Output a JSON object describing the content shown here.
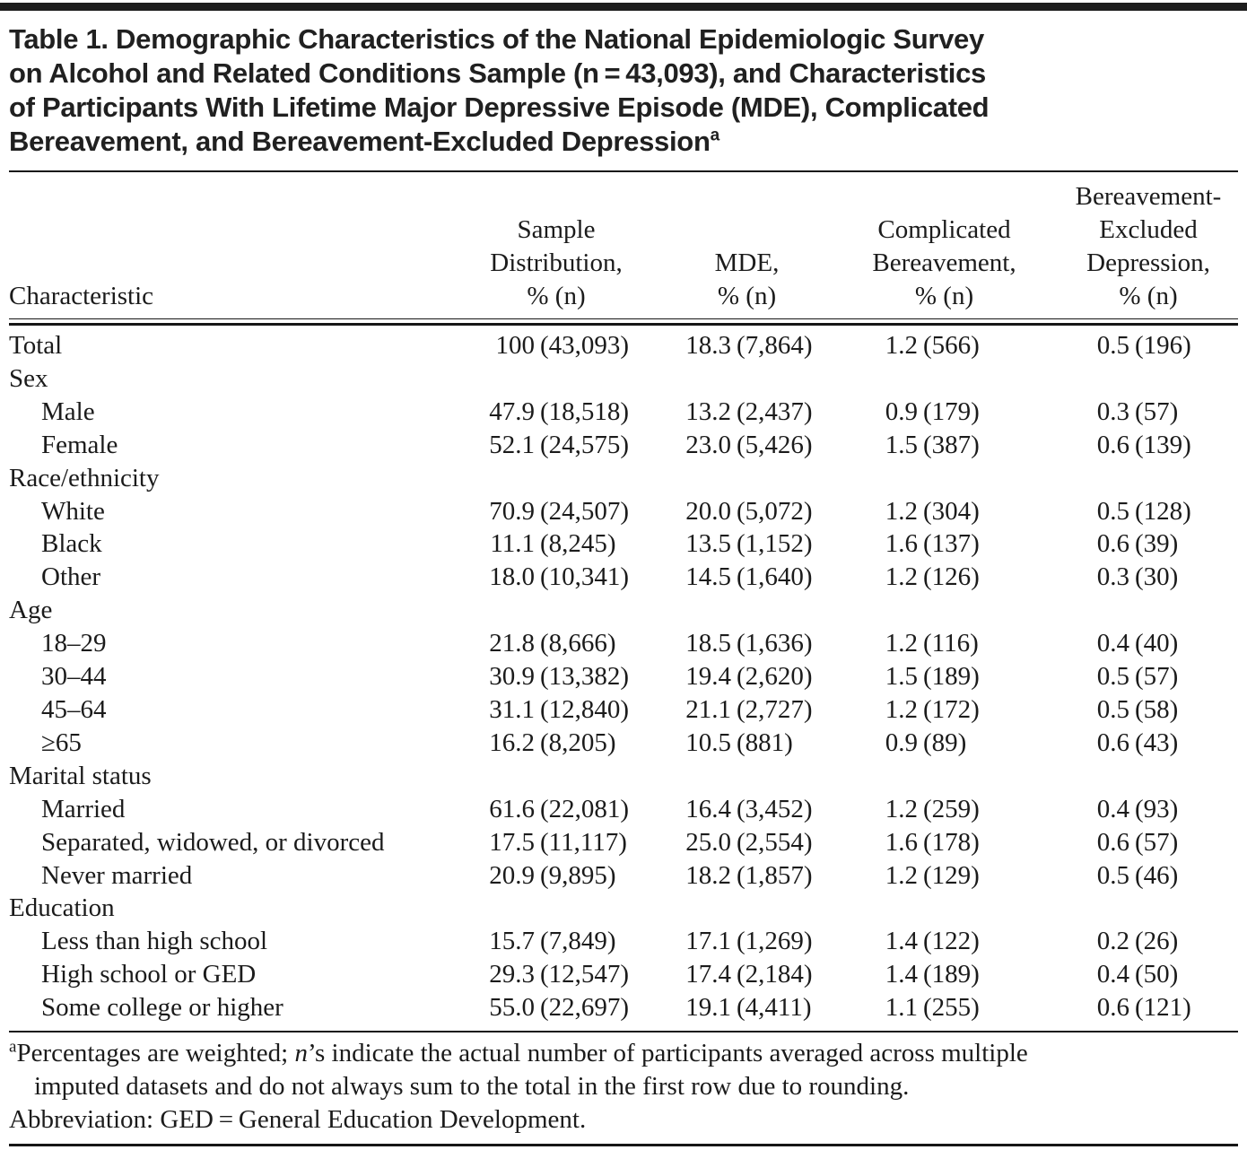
{
  "title": {
    "lines": [
      "Table 1. Demographic Characteristics of the National Epidemiologic Survey",
      "on Alcohol and Related Conditions Sample (n = 43,093), and Characteristics",
      "of Participants With Lifetime Major Depressive Episode (MDE), Complicated",
      "Bereavement, and Bereavement-Excluded Depression"
    ],
    "superscript": "a"
  },
  "table": {
    "header": {
      "characteristic": "Characteristic",
      "sample_lines": [
        "Sample",
        "Distribution,",
        "% (n)"
      ],
      "mde_lines": [
        "MDE,",
        "% (n)"
      ],
      "bereavement_lines": [
        "Complicated",
        "Bereavement,",
        "% (n)"
      ],
      "bed_lines": [
        "Bereavement-",
        "Excluded",
        "Depression,",
        "% (n)"
      ]
    },
    "rows": [
      {
        "label": "Total",
        "indent": false,
        "cells": [
          [
            "100",
            "(43,093)"
          ],
          [
            "18.3",
            "(7,864)"
          ],
          [
            "1.2",
            "(566)"
          ],
          [
            "0.5",
            "(196)"
          ]
        ]
      },
      {
        "label": "Sex",
        "indent": false,
        "cells": null
      },
      {
        "label": "Male",
        "indent": true,
        "cells": [
          [
            "47.9",
            "(18,518)"
          ],
          [
            "13.2",
            "(2,437)"
          ],
          [
            "0.9",
            "(179)"
          ],
          [
            "0.3",
            "(57)"
          ]
        ]
      },
      {
        "label": "Female",
        "indent": true,
        "cells": [
          [
            "52.1",
            "(24,575)"
          ],
          [
            "23.0",
            "(5,426)"
          ],
          [
            "1.5",
            "(387)"
          ],
          [
            "0.6",
            "(139)"
          ]
        ]
      },
      {
        "label": "Race/ethnicity",
        "indent": false,
        "cells": null
      },
      {
        "label": "White",
        "indent": true,
        "cells": [
          [
            "70.9",
            "(24,507)"
          ],
          [
            "20.0",
            "(5,072)"
          ],
          [
            "1.2",
            "(304)"
          ],
          [
            "0.5",
            "(128)"
          ]
        ]
      },
      {
        "label": "Black",
        "indent": true,
        "cells": [
          [
            "11.1",
            "(8,245)"
          ],
          [
            "13.5",
            "(1,152)"
          ],
          [
            "1.6",
            "(137)"
          ],
          [
            "0.6",
            "(39)"
          ]
        ]
      },
      {
        "label": "Other",
        "indent": true,
        "cells": [
          [
            "18.0",
            "(10,341)"
          ],
          [
            "14.5",
            "(1,640)"
          ],
          [
            "1.2",
            "(126)"
          ],
          [
            "0.3",
            "(30)"
          ]
        ]
      },
      {
        "label": "Age",
        "indent": false,
        "cells": null
      },
      {
        "label": "18–29",
        "indent": true,
        "cells": [
          [
            "21.8",
            "(8,666)"
          ],
          [
            "18.5",
            "(1,636)"
          ],
          [
            "1.2",
            "(116)"
          ],
          [
            "0.4",
            "(40)"
          ]
        ]
      },
      {
        "label": "30–44",
        "indent": true,
        "cells": [
          [
            "30.9",
            "(13,382)"
          ],
          [
            "19.4",
            "(2,620)"
          ],
          [
            "1.5",
            "(189)"
          ],
          [
            "0.5",
            "(57)"
          ]
        ]
      },
      {
        "label": "45–64",
        "indent": true,
        "cells": [
          [
            "31.1",
            "(12,840)"
          ],
          [
            "21.1",
            "(2,727)"
          ],
          [
            "1.2",
            "(172)"
          ],
          [
            "0.5",
            "(58)"
          ]
        ]
      },
      {
        "label": "≥65",
        "indent": true,
        "cells": [
          [
            "16.2",
            "(8,205)"
          ],
          [
            "10.5",
            "(881)"
          ],
          [
            "0.9",
            "(89)"
          ],
          [
            "0.6",
            "(43)"
          ]
        ]
      },
      {
        "label": "Marital status",
        "indent": false,
        "cells": null
      },
      {
        "label": "Married",
        "indent": true,
        "cells": [
          [
            "61.6",
            "(22,081)"
          ],
          [
            "16.4",
            "(3,452)"
          ],
          [
            "1.2",
            "(259)"
          ],
          [
            "0.4",
            "(93)"
          ]
        ]
      },
      {
        "label": "Separated, widowed, or divorced",
        "indent": true,
        "cells": [
          [
            "17.5",
            "(11,117)"
          ],
          [
            "25.0",
            "(2,554)"
          ],
          [
            "1.6",
            "(178)"
          ],
          [
            "0.6",
            "(57)"
          ]
        ]
      },
      {
        "label": "Never married",
        "indent": true,
        "cells": [
          [
            "20.9",
            "(9,895)"
          ],
          [
            "18.2",
            "(1,857)"
          ],
          [
            "1.2",
            "(129)"
          ],
          [
            "0.5",
            "(46)"
          ]
        ]
      },
      {
        "label": "Education",
        "indent": false,
        "cells": null
      },
      {
        "label": "Less than high school",
        "indent": true,
        "cells": [
          [
            "15.7",
            "(7,849)"
          ],
          [
            "17.1",
            "(1,269)"
          ],
          [
            "1.4",
            "(122)"
          ],
          [
            "0.2",
            "(26)"
          ]
        ]
      },
      {
        "label": "High school or GED",
        "indent": true,
        "cells": [
          [
            "29.3",
            "(12,547)"
          ],
          [
            "17.4",
            "(2,184)"
          ],
          [
            "1.4",
            "(189)"
          ],
          [
            "0.4",
            "(50)"
          ]
        ]
      },
      {
        "label": "Some college or higher",
        "indent": true,
        "cells": [
          [
            "55.0",
            "(22,697)"
          ],
          [
            "19.1",
            "(4,411)"
          ],
          [
            "1.1",
            "(255)"
          ],
          [
            "0.6",
            "(121)"
          ]
        ]
      }
    ]
  },
  "footnotes": {
    "marker": "a",
    "note_part1": "Percentages are weighted; ",
    "note_italic": "n",
    "note_part2": "’s indicate the actual number of participants averaged across multiple",
    "note_line2": "imputed datasets and do not always sum to the total in the first row due to rounding.",
    "abbreviation": "Abbreviation: GED = General Education Development."
  }
}
